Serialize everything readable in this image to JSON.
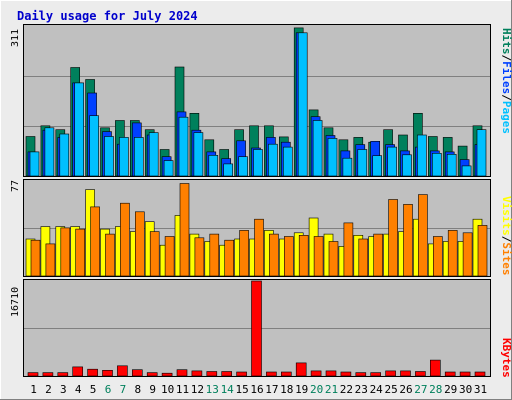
{
  "title": "Daily usage for July 2024",
  "colors": {
    "background": "#ececec",
    "panel": "#c0c0c0",
    "title": "#0000cc",
    "hits": "#00805c",
    "files": "#0040ff",
    "pages": "#00c0ff",
    "visits": "#ffff00",
    "sites": "#ff8000",
    "kbytes": "#ff0000",
    "weekday": "#000000",
    "weekend": "#00805c"
  },
  "labels": {
    "hits": "Hits",
    "files": "Files",
    "pages": "Pages",
    "visits": "Visits",
    "sites": "Sites",
    "kbytes": "KBytes",
    "sep": "/"
  },
  "chart_data": [
    {
      "type": "bar",
      "panel": "hits-files-pages",
      "ymax_label": "311",
      "ylim": [
        0,
        311
      ],
      "categories": [
        "1",
        "2",
        "3",
        "4",
        "5",
        "6",
        "7",
        "8",
        "9",
        "10",
        "11",
        "12",
        "13",
        "14",
        "15",
        "16",
        "17",
        "18",
        "19",
        "20",
        "21",
        "22",
        "23",
        "24",
        "25",
        "26",
        "27",
        "28",
        "29",
        "30",
        "31"
      ],
      "weekend": [
        "6",
        "7",
        "13",
        "14",
        "20",
        "21",
        "27",
        "28"
      ],
      "series": [
        {
          "name": "Hits",
          "values": [
            82,
            104,
            96,
            225,
            200,
            100,
            115,
            115,
            96,
            55,
            226,
            130,
            75,
            55,
            96,
            104,
            104,
            81,
            307,
            137,
            100,
            75,
            80,
            70,
            96,
            85,
            130,
            82,
            80,
            62,
            104
          ]
        },
        {
          "name": "Files",
          "values": [
            50,
            95,
            80,
            193,
            172,
            92,
            66,
            110,
            85,
            40,
            133,
            95,
            50,
            36,
            73,
            58,
            80,
            70,
            297,
            123,
            84,
            52,
            65,
            72,
            65,
            52,
            60,
            52,
            50,
            34,
            65
          ]
        },
        {
          "name": "Pages",
          "values": [
            50,
            100,
            87,
            193,
            125,
            82,
            80,
            80,
            90,
            32,
            122,
            90,
            43,
            25,
            40,
            55,
            66,
            60,
            297,
            115,
            78,
            37,
            55,
            42,
            60,
            44,
            85,
            47,
            45,
            21,
            96
          ]
        }
      ]
    },
    {
      "type": "bar",
      "panel": "visits-sites",
      "ymax_label": "77",
      "ylim": [
        0,
        77
      ],
      "categories": [
        "1",
        "2",
        "3",
        "4",
        "5",
        "6",
        "7",
        "8",
        "9",
        "10",
        "11",
        "12",
        "13",
        "14",
        "15",
        "16",
        "17",
        "18",
        "19",
        "20",
        "21",
        "22",
        "23",
        "24",
        "25",
        "26",
        "27",
        "28",
        "29",
        "30",
        "31"
      ],
      "series": [
        {
          "name": "Visits",
          "values": [
            30,
            40,
            40,
            40,
            70,
            38,
            40,
            36,
            44,
            25,
            49,
            34,
            28,
            25,
            30,
            30,
            37,
            30,
            35,
            47,
            34,
            24,
            33,
            32,
            34,
            36,
            46,
            26,
            28,
            28,
            46
          ]
        },
        {
          "name": "Sites",
          "values": [
            29,
            26,
            39,
            38,
            56,
            34,
            59,
            52,
            36,
            32,
            75,
            31,
            34,
            29,
            37,
            46,
            34,
            32,
            33,
            32,
            28,
            43,
            30,
            34,
            62,
            58,
            66,
            32,
            37,
            35,
            41
          ]
        }
      ]
    },
    {
      "type": "bar",
      "panel": "kbytes",
      "ymax_label": "16710",
      "ylim": [
        0,
        16710
      ],
      "categories": [
        "1",
        "2",
        "3",
        "4",
        "5",
        "6",
        "7",
        "8",
        "9",
        "10",
        "11",
        "12",
        "13",
        "14",
        "15",
        "16",
        "17",
        "18",
        "19",
        "20",
        "21",
        "22",
        "23",
        "24",
        "25",
        "26",
        "27",
        "28",
        "29",
        "30",
        "31"
      ],
      "series": [
        {
          "name": "KBytes",
          "values": [
            600,
            600,
            600,
            1600,
            1200,
            1000,
            1800,
            1100,
            600,
            500,
            1100,
            900,
            800,
            800,
            700,
            16710,
            700,
            700,
            2300,
            900,
            900,
            700,
            600,
            600,
            900,
            900,
            800,
            2800,
            700,
            700,
            700
          ]
        }
      ]
    }
  ]
}
